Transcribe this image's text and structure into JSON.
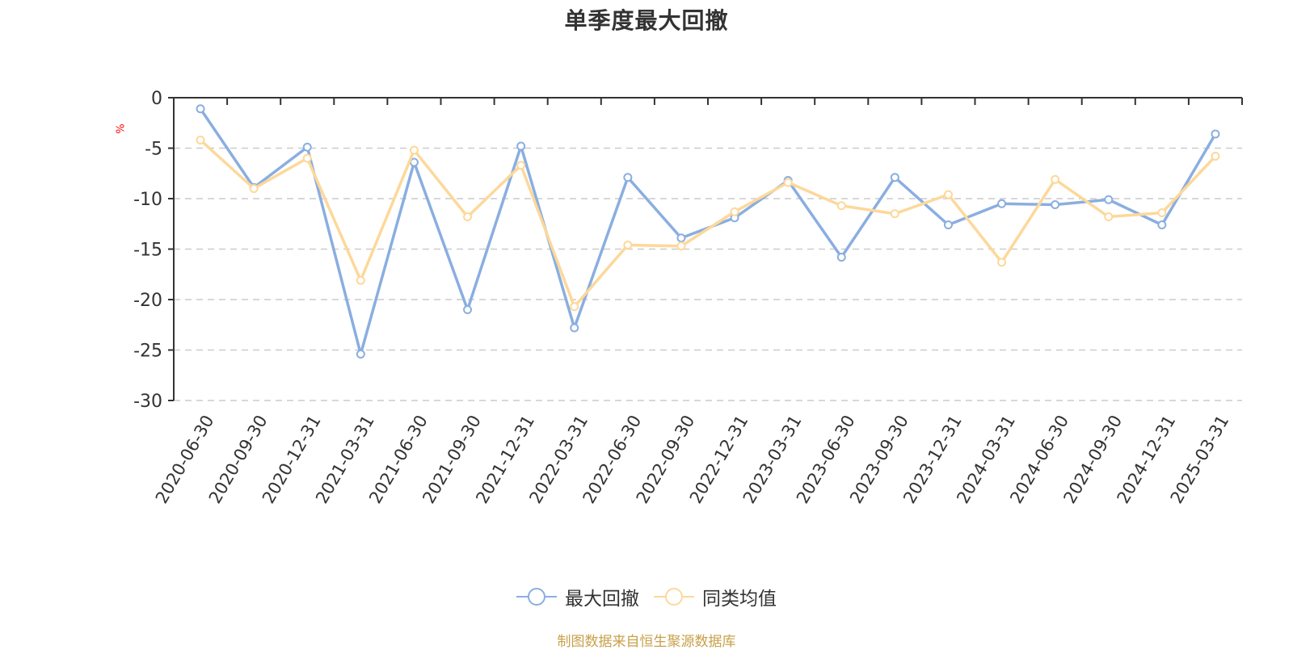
{
  "title": "单季度最大回撤",
  "footer": "制图数据来自恒生聚源数据库",
  "colors": {
    "series_1": "#8aaee0",
    "series_2": "#fdd89a",
    "unit": "#ff0000",
    "footer": "#c9a04a"
  },
  "legend": [
    {
      "label": "最大回撤",
      "icon": "line-circle-icon",
      "color": "#8aaee0"
    },
    {
      "label": "同类均值",
      "icon": "line-circle-icon",
      "color": "#fdd89a"
    }
  ],
  "chart_data": {
    "type": "line",
    "title": "单季度最大回撤",
    "xlabel": "",
    "ylabel": "%",
    "ylim": [
      -30,
      0
    ],
    "yticks": [
      0,
      -5,
      -10,
      -15,
      -20,
      -25,
      -30
    ],
    "grid": true,
    "legend_position": "bottom",
    "categories": [
      "2020-06-30",
      "2020-09-30",
      "2020-12-31",
      "2021-03-31",
      "2021-06-30",
      "2021-09-30",
      "2021-12-31",
      "2022-03-31",
      "2022-06-30",
      "2022-09-30",
      "2022-12-31",
      "2023-03-31",
      "2023-06-30",
      "2023-09-30",
      "2023-12-31",
      "2024-03-31",
      "2024-06-30",
      "2024-09-30",
      "2024-12-31",
      "2025-03-31"
    ],
    "series": [
      {
        "name": "最大回撤",
        "values": [
          -1.1,
          -8.9,
          -4.9,
          -25.4,
          -6.4,
          -21.0,
          -4.8,
          -22.8,
          -7.9,
          -13.9,
          -11.9,
          -8.2,
          -15.8,
          -7.9,
          -12.6,
          -10.5,
          -10.6,
          -10.1,
          -12.6,
          -3.6
        ]
      },
      {
        "name": "同类均值",
        "values": [
          -4.2,
          -9.0,
          -6.0,
          -18.1,
          -5.2,
          -11.8,
          -6.7,
          -20.7,
          -14.6,
          -14.7,
          -11.3,
          -8.4,
          -10.7,
          -11.5,
          -9.6,
          -16.3,
          -8.1,
          -11.8,
          -11.4,
          -5.8
        ]
      }
    ]
  },
  "footer_source": "制图数据来自恒生聚源数据库"
}
